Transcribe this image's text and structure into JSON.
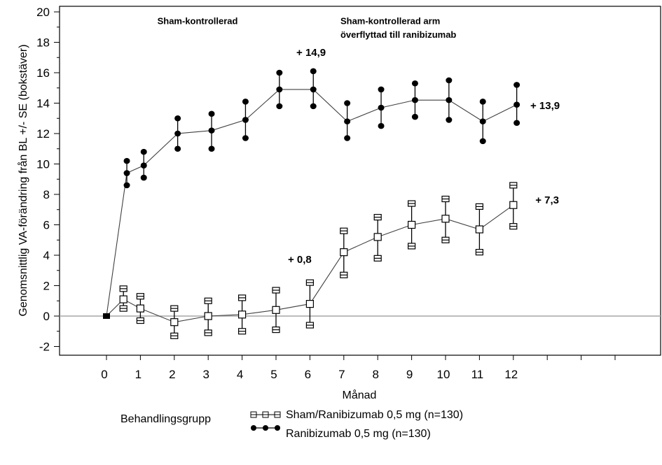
{
  "chart_data": {
    "type": "line",
    "title": "",
    "xlabel": "Månad",
    "ylabel": "Genomsnittlig VA-förändring från BL +/- SE (bokstäver)",
    "xlim": [
      -3.2,
      14.5
    ],
    "ylim": [
      -2.55,
      20.3
    ],
    "x_ticks": [
      0,
      1,
      2,
      3,
      4,
      5,
      6,
      7,
      8,
      9,
      10,
      11,
      12,
      13,
      14,
      15
    ],
    "x_tick_labels": [
      "0",
      "1",
      "2",
      "3",
      "4",
      "5",
      "6",
      "7",
      "8",
      "9",
      "10",
      "11",
      "12",
      "",
      "",
      ""
    ],
    "y_ticks": [
      -2,
      0,
      2,
      4,
      6,
      8,
      10,
      12,
      14,
      16,
      18,
      20
    ],
    "y_tick_labels": [
      "-2",
      "0",
      "2",
      "4",
      "6",
      "8",
      "10",
      "12",
      "14",
      "16",
      "18",
      "20"
    ],
    "y_minor_step": 1,
    "reference_line_y": 0,
    "grid": false,
    "legend": {
      "title": "Behandlingsgrupp",
      "position": "bottom",
      "entries": [
        "Sham/Ranibizumab 0,5 mg (n=130)",
        "Ranibizumab 0,5 mg (n=130)"
      ]
    },
    "series": [
      {
        "name": "Sham/Ranibizumab 0,5 mg (n=130)",
        "marker": "open-square",
        "x": [
          0,
          0.5,
          1,
          2,
          3,
          4,
          5,
          6,
          7,
          8,
          9,
          10,
          11,
          12
        ],
        "y": [
          0,
          1.1,
          0.5,
          -0.4,
          0.0,
          0.1,
          0.4,
          0.8,
          4.2,
          5.2,
          6.0,
          6.4,
          5.7,
          7.3
        ],
        "lower": [
          null,
          0.5,
          -0.3,
          -1.3,
          -1.1,
          -1.0,
          -0.9,
          -0.6,
          2.7,
          3.8,
          4.6,
          5.0,
          4.2,
          5.9
        ],
        "upper": [
          null,
          1.8,
          1.3,
          0.5,
          1.0,
          1.2,
          1.7,
          2.2,
          5.6,
          6.5,
          7.4,
          7.7,
          7.2,
          8.6
        ]
      },
      {
        "name": "Ranibizumab 0,5 mg (n=130)",
        "marker": "filled-circle",
        "x": [
          0,
          0.6,
          1.1,
          2.1,
          3.1,
          4.1,
          5.1,
          6.1,
          7.1,
          8.1,
          9.1,
          10.1,
          11.1,
          12.1
        ],
        "y": [
          0,
          9.4,
          9.9,
          12.0,
          12.2,
          12.9,
          14.9,
          14.9,
          12.8,
          13.7,
          14.2,
          14.2,
          12.8,
          13.9
        ],
        "lower": [
          null,
          8.6,
          9.1,
          11.0,
          11.0,
          11.7,
          13.8,
          13.8,
          11.7,
          12.5,
          13.1,
          12.9,
          11.5,
          12.7
        ],
        "upper": [
          null,
          10.2,
          10.8,
          13.0,
          13.3,
          14.1,
          16.0,
          16.1,
          14.0,
          14.9,
          15.3,
          15.5,
          14.1,
          15.2
        ]
      }
    ],
    "annotations": [
      {
        "text": "Sham-kontrollerad",
        "x": 1.5,
        "y": 19.2,
        "style": "small"
      },
      {
        "text": "Sham-kontrollerad arm",
        "x": 6.9,
        "y": 19.2,
        "style": "small"
      },
      {
        "text": "överflyttad till ranibizumab",
        "x": 6.9,
        "y": 18.3,
        "style": "small"
      },
      {
        "text": "+ 14,9",
        "x": 5.6,
        "y": 17.1,
        "style": "bold"
      },
      {
        "text": "+ 13,9",
        "x": 12.5,
        "y": 13.6,
        "style": "bold"
      },
      {
        "text": "+ 7,3",
        "x": 12.65,
        "y": 7.4,
        "style": "bold"
      },
      {
        "text": "+ 0,8",
        "x": 5.35,
        "y": 3.5,
        "style": "bold"
      }
    ]
  }
}
